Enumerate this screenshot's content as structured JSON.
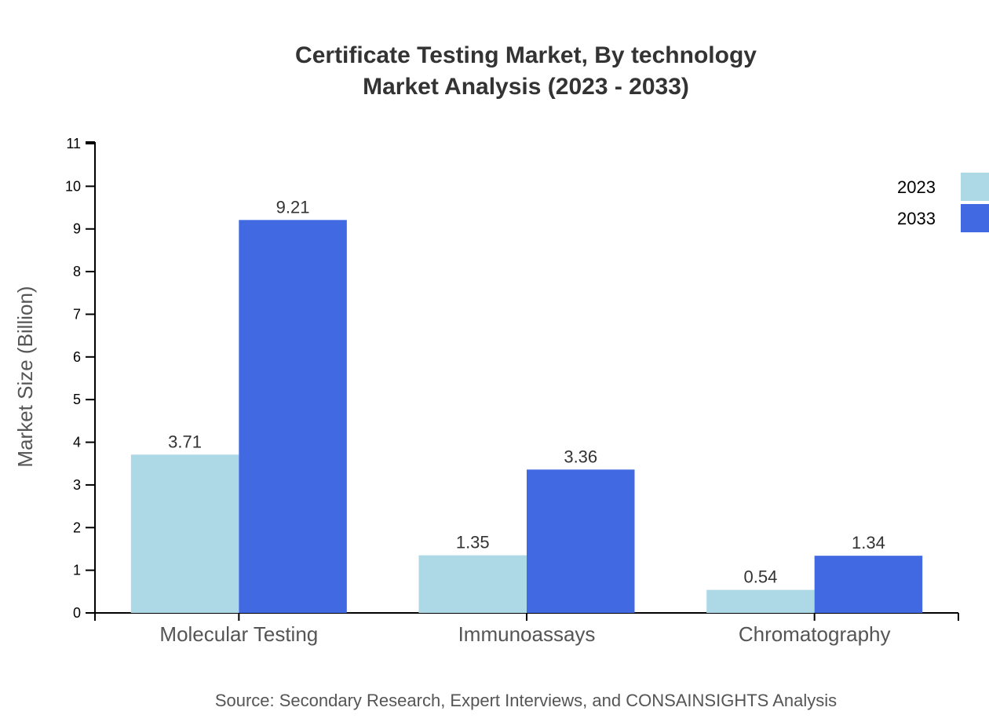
{
  "chart_data": {
    "type": "bar",
    "title": "Certificate Testing Market, By technology",
    "subtitle": "Market Analysis (2023 - 2033)",
    "xlabel": "",
    "ylabel": "Market Size (Billion)",
    "ylim": [
      0,
      11
    ],
    "yticks": [
      "0",
      "1",
      "2",
      "3",
      "4",
      "5",
      "6",
      "7",
      "8",
      "9",
      "10",
      "11"
    ],
    "categories": [
      "Molecular Testing",
      "Immunoassays",
      "Chromatography"
    ],
    "series": [
      {
        "name": "2023",
        "values": [
          3.71,
          1.35,
          0.54
        ],
        "labels": [
          "3.71",
          "1.35",
          "0.54"
        ],
        "color": "#add8e6"
      },
      {
        "name": "2033",
        "values": [
          9.21,
          3.36,
          1.34
        ],
        "labels": [
          "9.21",
          "3.36",
          "1.34"
        ],
        "color": "#4169e1"
      }
    ],
    "legend": "top-right",
    "grid": false,
    "source": "Source: Secondary Research, Expert Interviews, and CONSAINSIGHTS Analysis"
  }
}
